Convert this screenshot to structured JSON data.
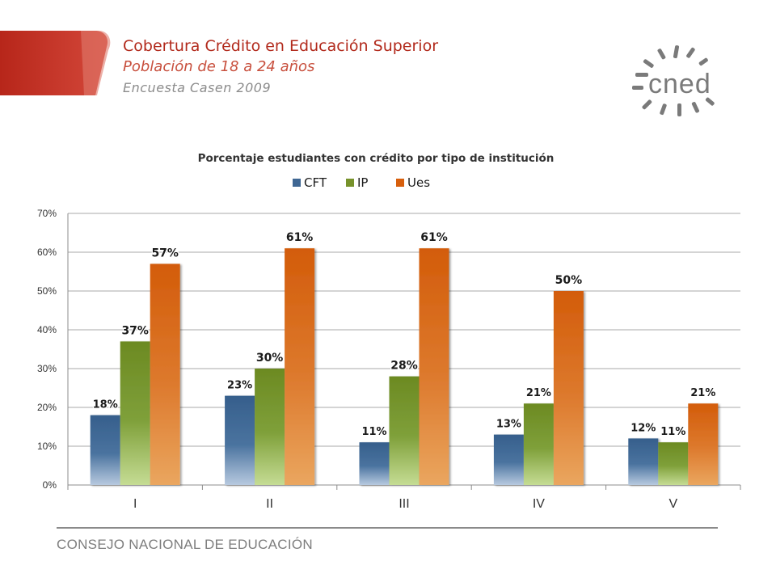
{
  "header": {
    "title": "Cobertura Crédito en Educación Superior",
    "subtitle": "Población de 18 a 24 años",
    "source": "Encuesta Casen 2009"
  },
  "logo": {
    "text": "cned",
    "icon": "cned-sunburst-logo"
  },
  "footer": {
    "text": "CONSEJO NACIONAL DE EDUCACIÓN"
  },
  "colors": {
    "cft": "#3f6793",
    "ip": "#77922b",
    "ues": "#d75f0c",
    "brand_red": "#b22a1c"
  },
  "chart_data": {
    "type": "bar",
    "title": "Porcentaje estudiantes con crédito por tipo de institución",
    "categories": [
      "I",
      "II",
      "III",
      "IV",
      "V"
    ],
    "series": [
      {
        "name": "CFT",
        "values": [
          18,
          23,
          11,
          13,
          12
        ],
        "labels": [
          "18%",
          "23%",
          "11%",
          "13%",
          "12%"
        ]
      },
      {
        "name": "IP",
        "values": [
          37,
          30,
          28,
          21,
          11
        ],
        "labels": [
          "37%",
          "30%",
          "28%",
          "21%",
          "11%"
        ]
      },
      {
        "name": "Ues",
        "values": [
          57,
          61,
          61,
          50,
          21
        ],
        "labels": [
          "57%",
          "61%",
          "61%",
          "50%",
          "21%"
        ]
      }
    ],
    "ylim": [
      0,
      70
    ],
    "yticks": [
      "0%",
      "10%",
      "20%",
      "30%",
      "40%",
      "50%",
      "60%",
      "70%"
    ],
    "grid": true,
    "legend": "top-center"
  }
}
